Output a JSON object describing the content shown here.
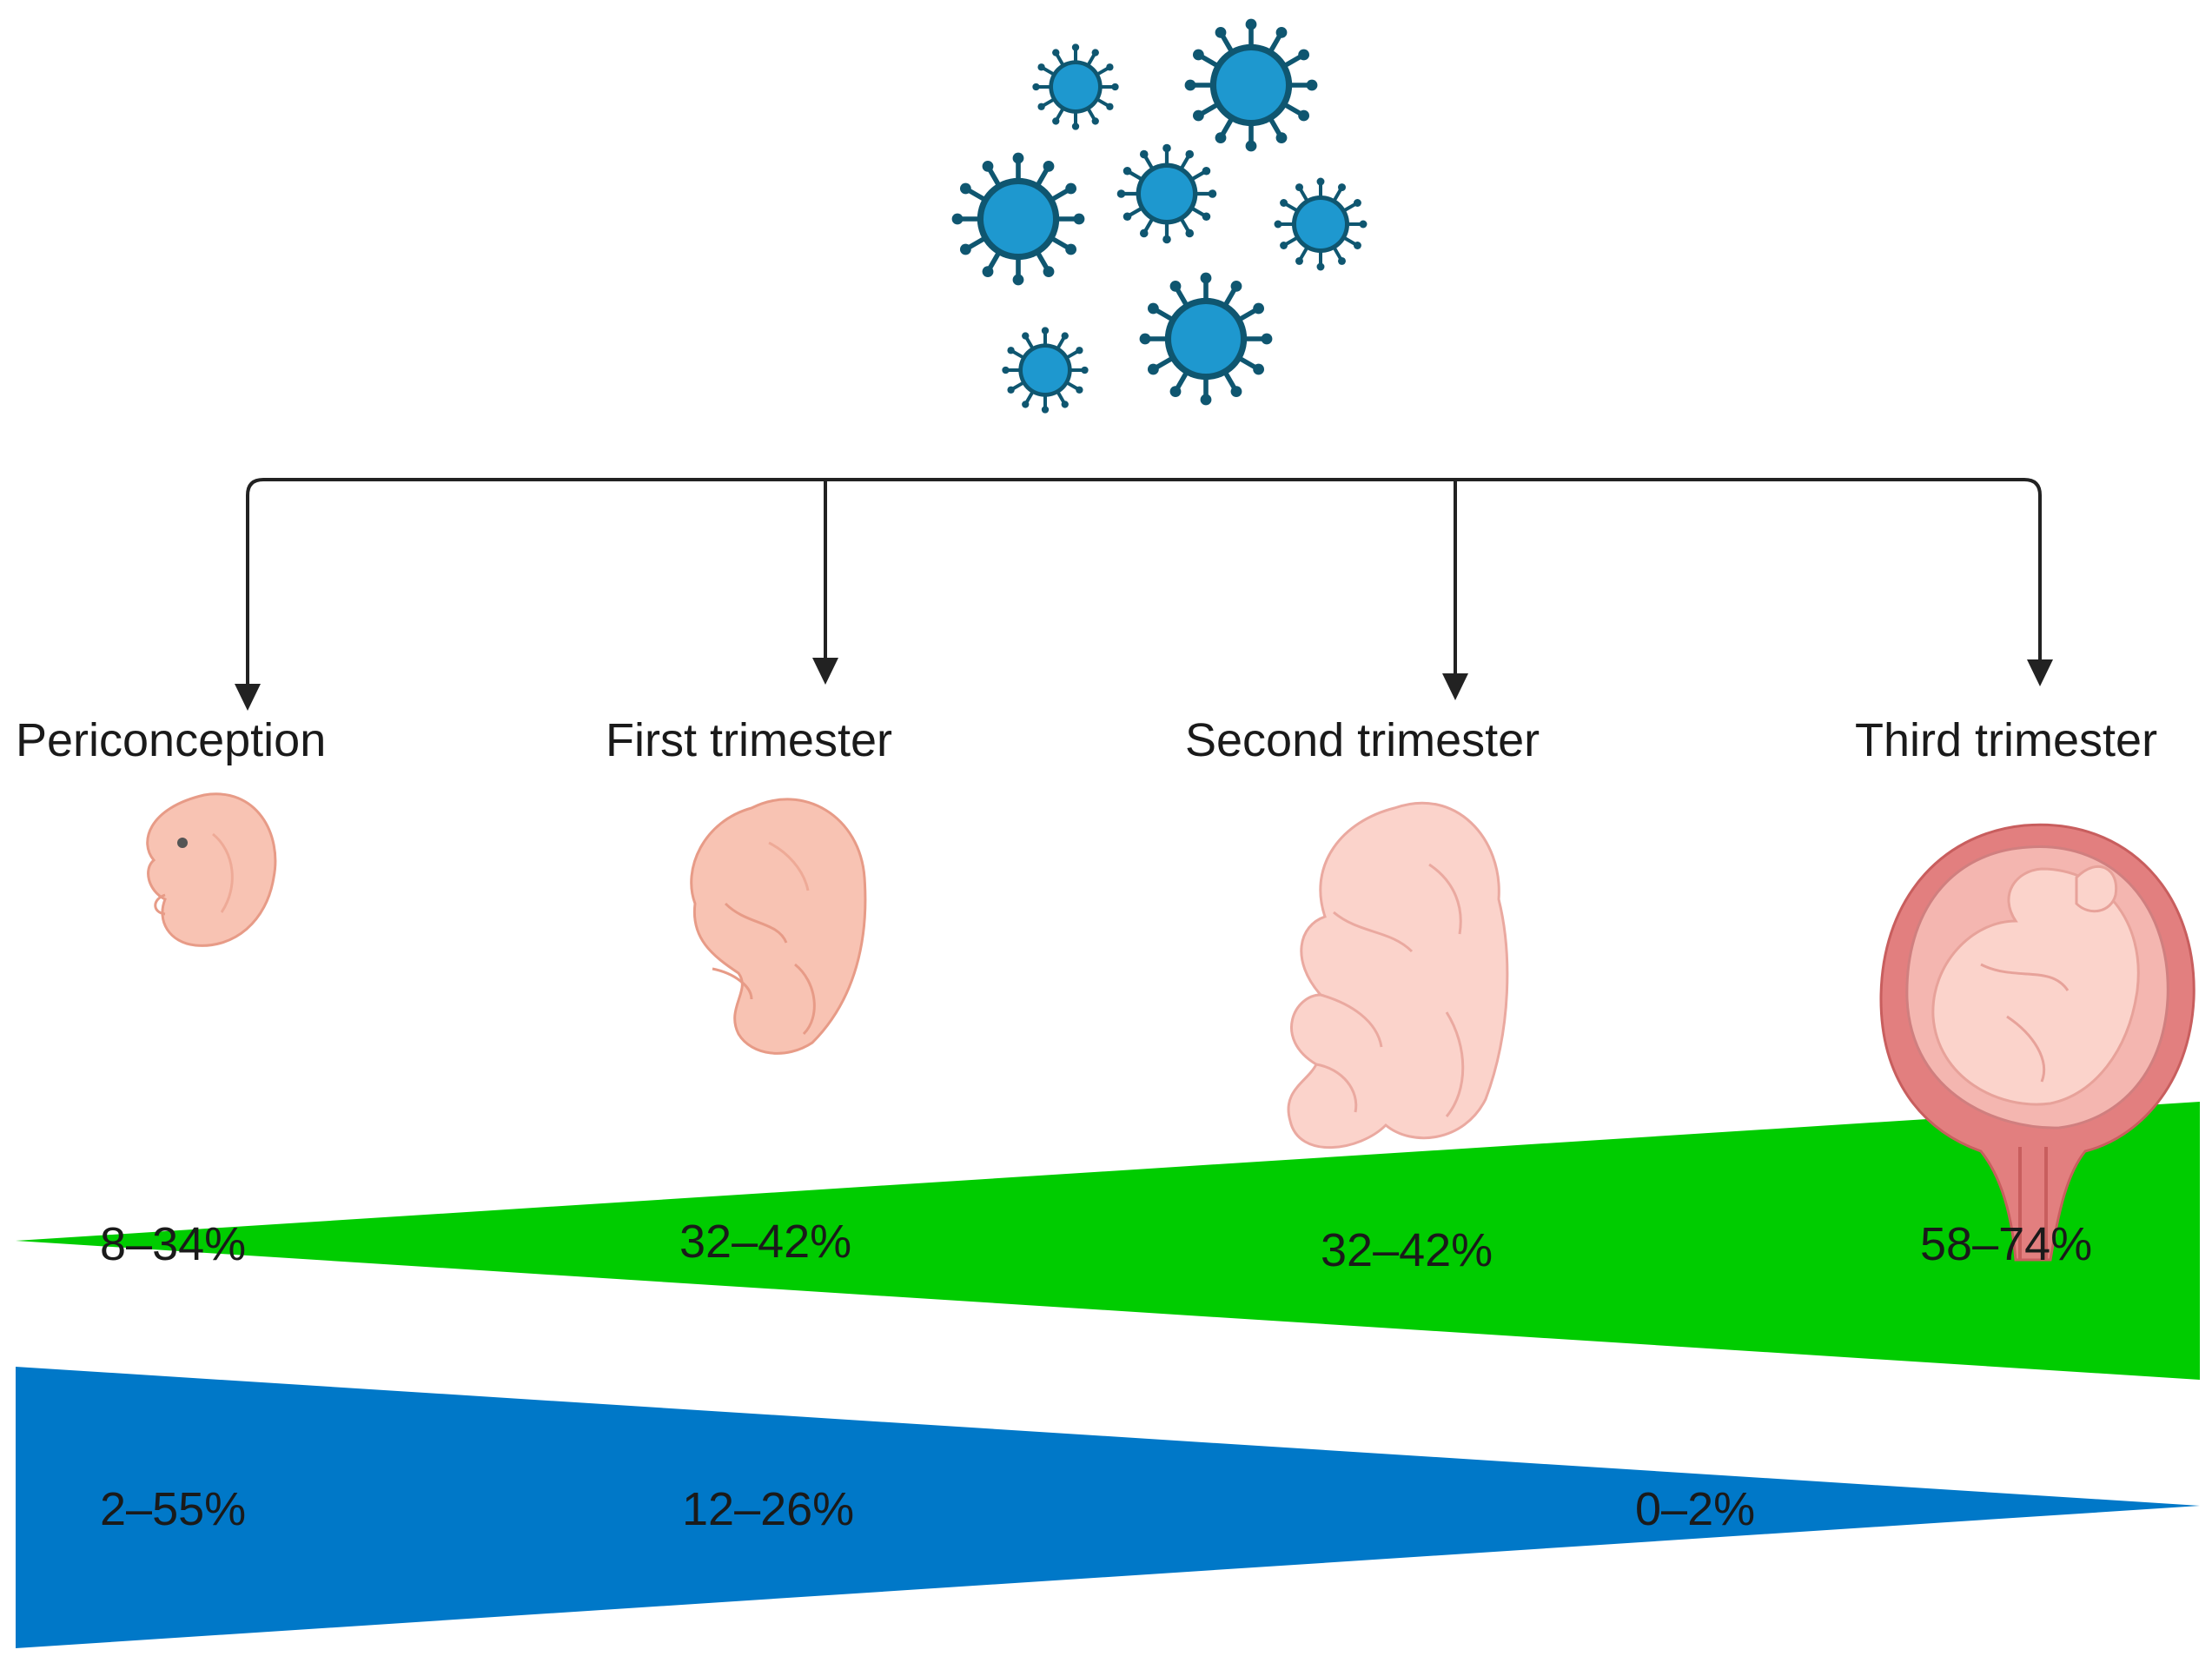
{
  "colors": {
    "virus": "#1e98cf",
    "virus_outline": "#0f5670",
    "arrow": "#222222",
    "wedge_green": "#00cc00",
    "wedge_blue": "#0078c8",
    "skin": "#f8c3b3",
    "skin_outline": "#e79b87",
    "uterus": "#e27f7f"
  },
  "icons": {
    "virus_cluster": "virus-icon",
    "embryo": "embryo-icon",
    "fetus": "fetus-icon",
    "uterus": "pregnant-uterus-icon"
  },
  "stages": [
    {
      "label": "Periconception",
      "icon": "embryo-icon"
    },
    {
      "label": "First trimester",
      "icon": "fetus-icon"
    },
    {
      "label": "Second trimester",
      "icon": "fetus-icon"
    },
    {
      "label": "Third trimester",
      "icon": "pregnant-uterus-icon"
    }
  ],
  "green_wedge": {
    "values": [
      "8–34%",
      "32–42%",
      "32–42%",
      "58–74%"
    ]
  },
  "blue_wedge": {
    "values": [
      "2–55%",
      "12–26%",
      "0–2%"
    ]
  }
}
